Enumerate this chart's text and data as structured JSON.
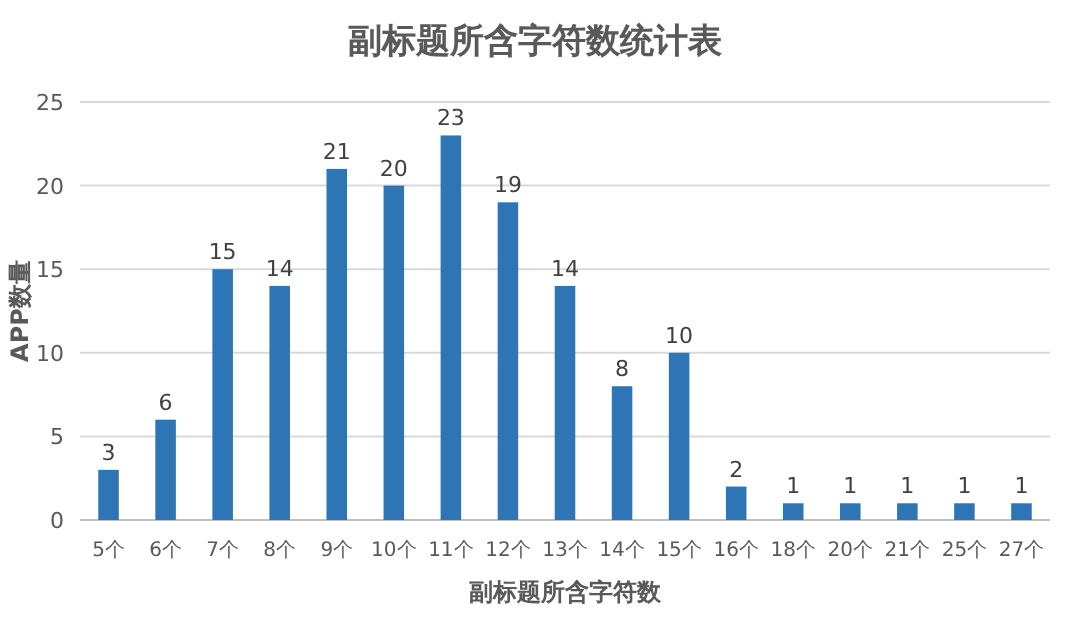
{
  "chart_data": {
    "type": "bar",
    "title": "副标题所含字符数统计表",
    "xlabel": "副标题所含字符数",
    "ylabel": "APP数量",
    "categories": [
      "5个",
      "6个",
      "7个",
      "8个",
      "9个",
      "10个",
      "11个",
      "12个",
      "13个",
      "14个",
      "15个",
      "16个",
      "18个",
      "20个",
      "21个",
      "25个",
      "27个"
    ],
    "values": [
      3,
      6,
      15,
      14,
      21,
      20,
      23,
      19,
      14,
      8,
      10,
      2,
      1,
      1,
      1,
      1,
      1
    ],
    "color": "#2e75b6",
    "ylim": [
      0,
      25
    ],
    "yticks": [
      0,
      5,
      10,
      15,
      20,
      25
    ],
    "grid": "y",
    "data_labels": true
  }
}
